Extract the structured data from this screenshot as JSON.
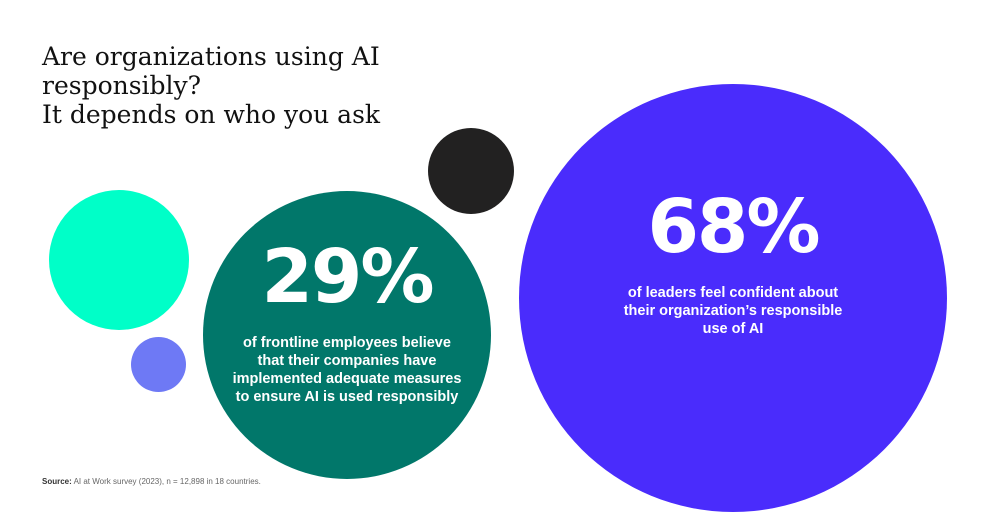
{
  "title": {
    "line1": "Are organizations using AI",
    "line2": "responsibly?",
    "line3": "It depends on who you ask"
  },
  "stats": {
    "frontline": {
      "percent": "29%",
      "description": "of frontline employees believe that their companies have implemented adequate measures to ensure AI is used responsibly"
    },
    "leaders": {
      "percent": "68%",
      "description": "of leaders feel confident about their organization’s responsible use of AI"
    }
  },
  "source": {
    "label": "Source:",
    "text": "AI at Work survey (2023), n = 12,898 in 18 countries."
  },
  "colors": {
    "frontline": "#01776a",
    "leaders": "#4a2cfc",
    "decor_teal": "#00ffc8",
    "decor_lavender": "#6e79f5",
    "decor_black": "#222121"
  },
  "chart_data": {
    "type": "bubble",
    "series": [
      {
        "name": "frontline employees",
        "value": 29,
        "unit": "%"
      },
      {
        "name": "leaders",
        "value": 68,
        "unit": "%"
      }
    ]
  }
}
